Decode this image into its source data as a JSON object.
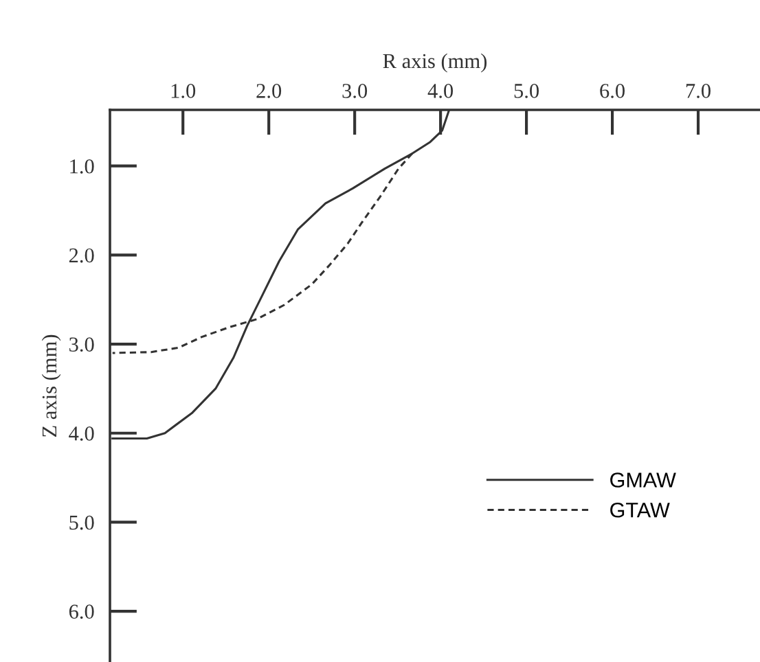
{
  "chart_data": {
    "type": "line",
    "xlabel": "R axis (mm)",
    "ylabel": "Z axis (mm)",
    "xlim": [
      0.15,
      7.72
    ],
    "ylim": [
      6.57,
      0.37
    ],
    "xticks": [
      {
        "value": 1,
        "label": "1.0"
      },
      {
        "value": 2,
        "label": "2.0"
      },
      {
        "value": 3,
        "label": "3.0"
      },
      {
        "value": 4,
        "label": "4.0"
      },
      {
        "value": 5,
        "label": "5.0"
      },
      {
        "value": 6,
        "label": "6.0"
      },
      {
        "value": 7,
        "label": "7.0"
      }
    ],
    "yticks": [
      {
        "value": 1,
        "label": "1.0"
      },
      {
        "value": 2,
        "label": "2.0"
      },
      {
        "value": 3,
        "label": "3.0"
      },
      {
        "value": 4,
        "label": "4.0"
      },
      {
        "value": 5,
        "label": "5.0"
      },
      {
        "value": 6,
        "label": "6.0"
      }
    ],
    "grid": false,
    "legend": "lower right",
    "marker": "none",
    "series": [
      {
        "name": "GMAW",
        "color": "#333333",
        "line_style": "solid",
        "x": [
          4.1,
          4.02,
          3.88,
          3.67,
          3.35,
          2.98,
          2.66,
          2.34,
          2.12,
          1.91,
          1.75,
          1.59,
          1.38,
          1.11,
          0.79,
          0.58,
          0.18
        ],
        "values": [
          0.37,
          0.6,
          0.73,
          0.86,
          1.03,
          1.25,
          1.42,
          1.71,
          2.07,
          2.48,
          2.79,
          3.15,
          3.5,
          3.77,
          4.0,
          4.06,
          4.06
        ]
      },
      {
        "name": "GTAW",
        "color": "#333333",
        "line_style": "dashed",
        "x": [
          3.67,
          3.51,
          3.3,
          3.08,
          2.92,
          2.71,
          2.5,
          2.18,
          1.86,
          1.54,
          1.22,
          0.95,
          0.63,
          0.18
        ],
        "values": [
          0.86,
          1.03,
          1.34,
          1.64,
          1.87,
          2.11,
          2.33,
          2.56,
          2.72,
          2.81,
          2.92,
          3.04,
          3.09,
          3.1
        ]
      }
    ]
  }
}
